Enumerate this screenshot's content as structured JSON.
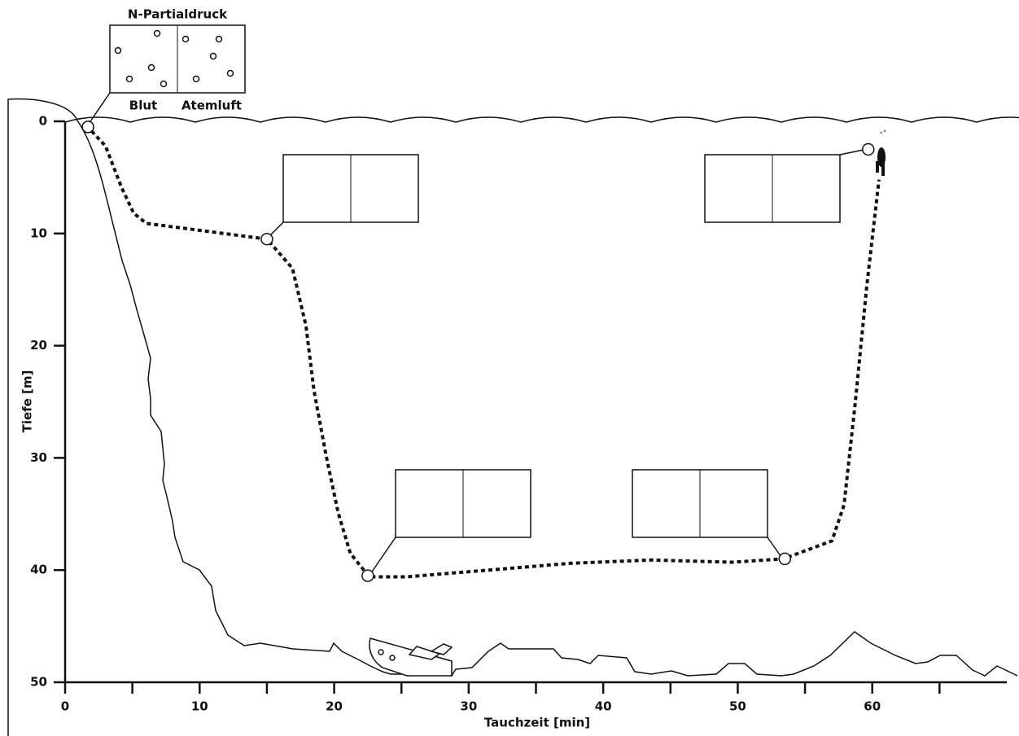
{
  "chart_data": {
    "type": "line",
    "title": "N-Partialdruck",
    "annotations": [
      "Blut",
      "Atemluft"
    ],
    "x_label": "Tauchzeit [min]",
    "y_label": "Tiefe [m]",
    "x": [
      1.6,
      3,
      4.2,
      5.1,
      6.05,
      15,
      16.9,
      17.9,
      18.5,
      19.4,
      20.3,
      21.2,
      22.6,
      25.4,
      31.5,
      37.5,
      43.6,
      49.6,
      53.4,
      57,
      57.9,
      58.7,
      59.6,
      60.5
    ],
    "values": [
      0.4,
      2.2,
      5.9,
      8.2,
      9.1,
      10.5,
      13.1,
      18.2,
      24,
      29.8,
      34.9,
      38.5,
      40.6,
      40.6,
      40,
      39.4,
      39.1,
      39.3,
      39,
      37.4,
      34.2,
      25.5,
      14.6,
      5.2
    ],
    "markers": {
      "x": [
        1.7,
        15,
        22.5,
        53.5,
        59.7
      ],
      "values": [
        0.5,
        10.5,
        40.5,
        39,
        2.5
      ]
    },
    "color": "#111111",
    "xlim": [
      0,
      70
    ],
    "ylim": [
      0,
      50
    ],
    "xticks": [
      0,
      10,
      20,
      30,
      40,
      50,
      60
    ],
    "xminorticks": [
      5,
      15,
      25,
      35,
      45,
      55,
      65
    ],
    "yticks": [
      0,
      10,
      20,
      30,
      40,
      50
    ],
    "y_inverted": true
  }
}
